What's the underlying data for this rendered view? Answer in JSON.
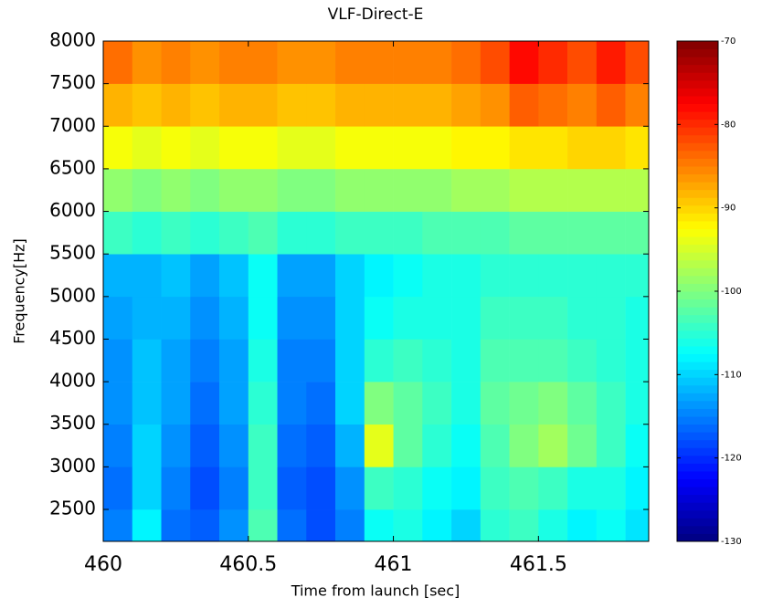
{
  "chart_data": {
    "type": "heatmap",
    "title": "VLF-Direct-E",
    "x_label": "Time from launch [sec]",
    "y_label": "Frequency[Hz]",
    "xlim": [
      460,
      461.88
    ],
    "xticks": [
      460,
      460.5,
      461,
      461.5
    ],
    "ylim": [
      2125,
      8000
    ],
    "yticks": [
      2500,
      3000,
      3500,
      4000,
      4500,
      5000,
      5500,
      6000,
      6500,
      7000,
      7500,
      8000
    ],
    "x_edges": [
      460,
      460.1,
      460.2,
      460.3,
      460.4,
      460.5,
      460.6,
      460.7,
      460.8,
      460.9,
      461,
      461.1,
      461.2,
      461.3,
      461.4,
      461.5,
      461.6,
      461.7,
      461.8,
      461.88
    ],
    "y_edges": [
      2125,
      2500,
      3000,
      3500,
      4000,
      4500,
      5000,
      5500,
      6000,
      6500,
      7000,
      7500,
      8000
    ],
    "colormap": "jet",
    "clim": [
      -130,
      -70
    ],
    "cticks": [
      -130,
      -120,
      -110,
      -100,
      -90,
      -80,
      -70
    ],
    "values": [
      [
        -115,
        -108,
        -116,
        -117,
        -114,
        -103,
        -116,
        -118,
        -115,
        -107,
        -106,
        -108,
        -110,
        -105,
        -104,
        -106,
        -108,
        -107,
        -109
      ],
      [
        -116,
        -110,
        -115,
        -118,
        -115,
        -104,
        -117,
        -118,
        -114,
        -104,
        -105,
        -107,
        -108,
        -104,
        -103,
        -104,
        -106,
        -106,
        -108
      ],
      [
        -115,
        -110,
        -114,
        -117,
        -114,
        -104,
        -116,
        -117,
        -112,
        -94,
        -102,
        -105,
        -107,
        -103,
        -100,
        -98,
        -101,
        -104,
        -107
      ],
      [
        -114,
        -111,
        -113,
        -116,
        -113,
        -105,
        -115,
        -116,
        -110,
        -100,
        -102,
        -104,
        -106,
        -102,
        -101,
        -100,
        -102,
        -104,
        -106
      ],
      [
        -114,
        -111,
        -113,
        -115,
        -113,
        -106,
        -115,
        -115,
        -110,
        -105,
        -104,
        -105,
        -106,
        -103,
        -103,
        -103,
        -104,
        -105,
        -106
      ],
      [
        -113,
        -112,
        -112,
        -114,
        -112,
        -107,
        -114,
        -114,
        -110,
        -107,
        -106,
        -106,
        -106,
        -104,
        -104,
        -104,
        -105,
        -105,
        -106
      ],
      [
        -112,
        -112,
        -111,
        -113,
        -111,
        -107,
        -113,
        -113,
        -110,
        -108,
        -107,
        -106,
        -106,
        -105,
        -105,
        -105,
        -105,
        -105,
        -105
      ],
      [
        -104,
        -105,
        -104,
        -105,
        -104,
        -103,
        -105,
        -105,
        -104,
        -104,
        -104,
        -103,
        -103,
        -103,
        -102,
        -102,
        -102,
        -102,
        -102
      ],
      [
        -99,
        -100,
        -99,
        -100,
        -99,
        -99,
        -100,
        -100,
        -99,
        -99,
        -99,
        -99,
        -98,
        -98,
        -97,
        -97,
        -97,
        -97,
        -97
      ],
      [
        -93,
        -94,
        -93,
        -94,
        -93,
        -93,
        -94,
        -94,
        -93,
        -93,
        -93,
        -93,
        -92,
        -92,
        -91,
        -91,
        -90,
        -90,
        -91
      ],
      [
        -88,
        -89,
        -88,
        -89,
        -88,
        -88,
        -89,
        -89,
        -88,
        -88,
        -88,
        -88,
        -87,
        -86,
        -83,
        -84,
        -85,
        -83,
        -85
      ],
      [
        -84,
        -86,
        -85,
        -86,
        -85,
        -85,
        -86,
        -86,
        -85,
        -85,
        -85,
        -85,
        -84,
        -82,
        -78,
        -80,
        -82,
        -79,
        -82
      ]
    ]
  }
}
